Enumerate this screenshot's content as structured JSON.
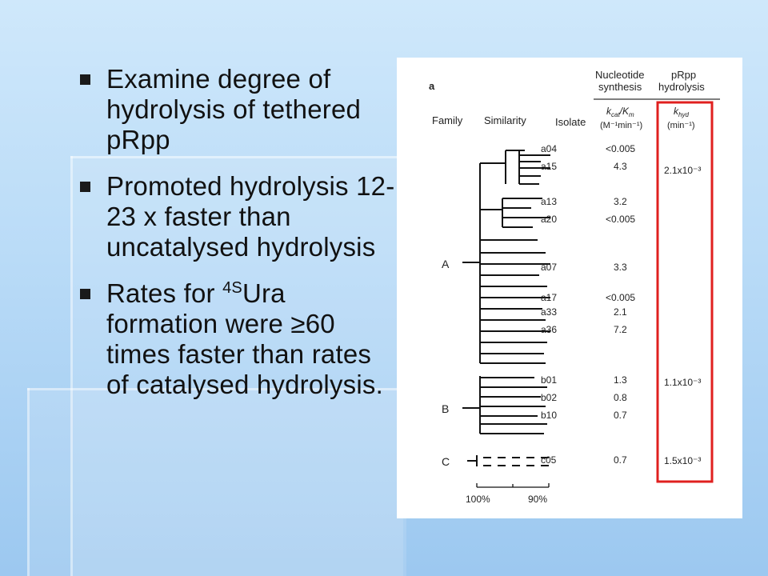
{
  "slide": {
    "bullets": [
      {
        "text": "Examine degree of hydrolysis of tethered pRpp"
      },
      {
        "text": "Promoted hydrolysis 12-23 x faster than uncatalysed hydrolysis"
      },
      {
        "pre": "Rates for ",
        "sup": "4S",
        "post": "Ura formation were ≥60 times faster than rates of catalysed hydrolysis."
      }
    ]
  },
  "figure": {
    "panel_label": "a",
    "headers": {
      "family": "Family",
      "similarity": "Similarity",
      "isolate": "Isolate",
      "nucleotide_line1": "Nucleotide",
      "nucleotide_line2": "synthesis",
      "prpp_line1": "pRpp",
      "prpp_line2": "hydrolysis",
      "kcat_k": "k",
      "kcat_sub": "cat",
      "kcat_slash": "/K",
      "kcat_sub2": "m",
      "kcat_units": "(M⁻¹min⁻¹)",
      "khyd_k": "k",
      "khyd_sub": "hyd",
      "khyd_units": "(min⁻¹)"
    },
    "families": [
      "A",
      "B",
      "C"
    ],
    "rows": [
      {
        "isolate": "a04",
        "kcat": "<0.005",
        "khyd": ""
      },
      {
        "isolate": "a15",
        "kcat": "4.3",
        "khyd": "2.1x10⁻³"
      },
      {
        "isolate": "a13",
        "kcat": "3.2",
        "khyd": ""
      },
      {
        "isolate": "a20",
        "kcat": "<0.005",
        "khyd": ""
      },
      {
        "isolate": "a07",
        "kcat": "3.3",
        "khyd": ""
      },
      {
        "isolate": "a17",
        "kcat": "<0.005",
        "khyd": ""
      },
      {
        "isolate": "a33",
        "kcat": "2.1",
        "khyd": ""
      },
      {
        "isolate": "a36",
        "kcat": "7.2",
        "khyd": ""
      },
      {
        "isolate": "b01",
        "kcat": "1.3",
        "khyd": "1.1x10⁻³"
      },
      {
        "isolate": "b02",
        "kcat": "0.8",
        "khyd": ""
      },
      {
        "isolate": "b10",
        "kcat": "0.7",
        "khyd": ""
      },
      {
        "isolate": "c05",
        "kcat": "0.7",
        "khyd": "1.5x10⁻³"
      }
    ],
    "scale": {
      "left": "100%",
      "right": "90%"
    },
    "highlight_color": "#e0201f"
  }
}
